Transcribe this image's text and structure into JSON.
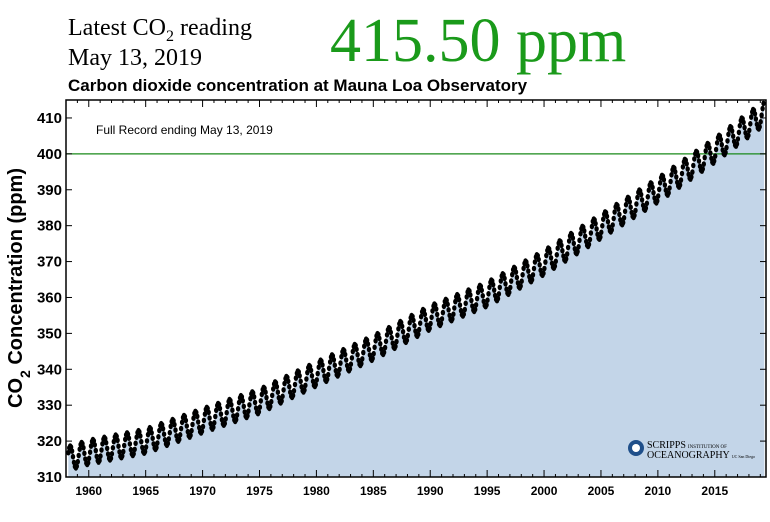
{
  "header": {
    "latest_prefix": "Latest CO",
    "latest_sub": "2",
    "latest_suffix": " reading",
    "latest_date": "May 13, 2019",
    "latest_value": "415.50 ppm"
  },
  "chart_data": {
    "type": "scatter",
    "title": "Carbon dioxide concentration at Mauna Loa Observatory",
    "annotation": "Full Record ending May 13, 2019",
    "ylabel_prefix": "CO",
    "ylabel_sub": "2",
    "ylabel_suffix": " Concentration (ppm)",
    "xlabel": "",
    "xlim": [
      1958,
      2019.5
    ],
    "ylim": [
      310,
      415
    ],
    "xticks": [
      1960,
      1965,
      1970,
      1975,
      1980,
      1985,
      1990,
      1995,
      2000,
      2005,
      2010,
      2015
    ],
    "yticks": [
      310,
      320,
      330,
      340,
      350,
      360,
      370,
      380,
      390,
      400,
      410
    ],
    "reference_line": 400,
    "start_year": 1958.2,
    "end_year": 2019.36,
    "trend_points": [
      [
        1958,
        315
      ],
      [
        1960,
        316.9
      ],
      [
        1965,
        320
      ],
      [
        1970,
        325.7
      ],
      [
        1975,
        331.1
      ],
      [
        1980,
        338.7
      ],
      [
        1985,
        346
      ],
      [
        1990,
        354.4
      ],
      [
        1995,
        360.9
      ],
      [
        2000,
        369.7
      ],
      [
        2005,
        379.8
      ],
      [
        2010,
        389.9
      ],
      [
        2015,
        401
      ],
      [
        2019.4,
        411.5
      ]
    ],
    "seasonal_amplitude": 3.3,
    "colors": {
      "area": "#c3d5e8",
      "points": "#000000",
      "reference_line": "#1a8a1a",
      "latest_value": "#1a9a1a"
    },
    "logo": {
      "line1": "SCRIPPS",
      "line1_small": "INSTITUTION OF",
      "line2": "OCEANOGRAPHY",
      "line2_small": "UC San Diego"
    }
  }
}
